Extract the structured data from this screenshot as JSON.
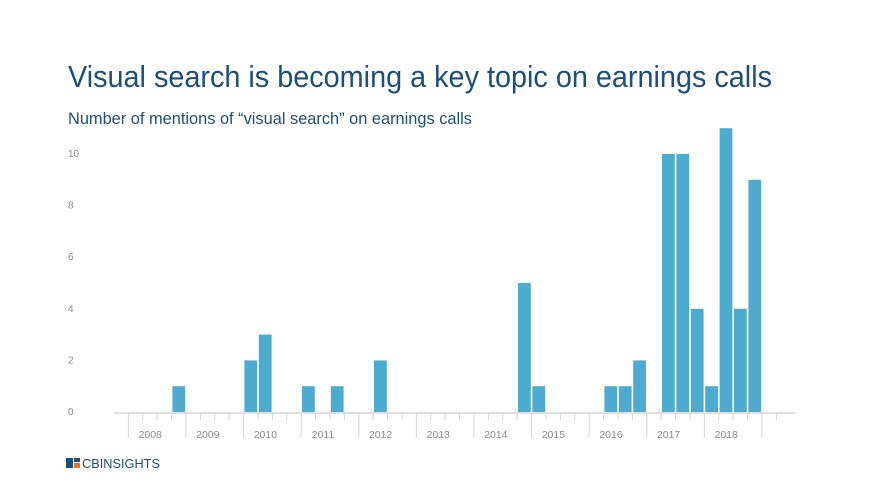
{
  "chart_data": {
    "type": "bar",
    "title": "Visual search is becoming a key topic on earnings calls",
    "subtitle": "Number of mentions of “visual search” on earnings calls",
    "xlabel": "",
    "ylabel": "",
    "ylim": [
      0,
      11
    ],
    "yticks": [
      "0",
      "2",
      "4",
      "6",
      "8",
      "10"
    ],
    "year_labels": [
      "2008",
      "2009",
      "2010",
      "2011",
      "2012",
      "2013",
      "2014",
      "2015",
      "2016",
      "2017",
      "2018"
    ],
    "categories": [
      "2008 Q1",
      "2008 Q2",
      "2008 Q3",
      "2008 Q4",
      "2009 Q1",
      "2009 Q2",
      "2009 Q3",
      "2009 Q4",
      "2010 Q1",
      "2010 Q2",
      "2010 Q3",
      "2010 Q4",
      "2011 Q1",
      "2011 Q2",
      "2011 Q3",
      "2011 Q4",
      "2012 Q1",
      "2012 Q2",
      "2012 Q3",
      "2012 Q4",
      "2013 Q1",
      "2013 Q2",
      "2013 Q3",
      "2013 Q4",
      "2014 Q1",
      "2014 Q2",
      "2014 Q3",
      "2014 Q4",
      "2015 Q1",
      "2015 Q2",
      "2015 Q3",
      "2015 Q4",
      "2016 Q1",
      "2016 Q2",
      "2016 Q3",
      "2016 Q4",
      "2017 Q1",
      "2017 Q2",
      "2017 Q3",
      "2017 Q4",
      "2018 Q1",
      "2018 Q2",
      "2018 Q3",
      "2018 Q4"
    ],
    "values": [
      0,
      0,
      0,
      1,
      0,
      0,
      0,
      0,
      2,
      3,
      0,
      0,
      1,
      0,
      1,
      0,
      0,
      2,
      0,
      0,
      0,
      0,
      0,
      0,
      0,
      0,
      0,
      5,
      1,
      0,
      0,
      0,
      0,
      1,
      1,
      2,
      0,
      10,
      10,
      4,
      1,
      11,
      4,
      9
    ],
    "grid": false,
    "legend": "none",
    "bar_color": "#4dabd0"
  },
  "brand": {
    "logo_text": "CBINSIGHTS",
    "colors": {
      "title": "#1d4f7c",
      "logo_blue": "#1d4f7c",
      "logo_orange": "#e8702a"
    }
  }
}
